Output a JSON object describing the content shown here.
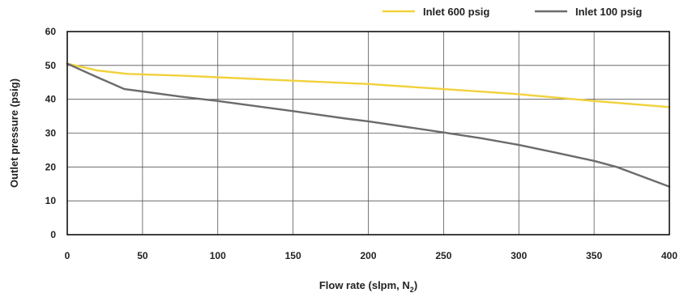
{
  "chart_data": {
    "type": "line",
    "title": "",
    "xlabel": "Flow rate (slpm, N",
    "xlabel_subscript": "2",
    "xlabel_suffix": ")",
    "ylabel": "Outlet pressure (psig)",
    "xlim": [
      0,
      400
    ],
    "ylim": [
      0,
      60
    ],
    "x_ticks": [
      "0",
      "50",
      "100",
      "150",
      "200",
      "250",
      "300",
      "350",
      "400"
    ],
    "y_ticks": [
      "0",
      "10",
      "20",
      "30",
      "40",
      "50",
      "60"
    ],
    "grid": true,
    "legend_position": "top-right",
    "series": [
      {
        "name": "Inlet 600 psig",
        "color": "#f2d13b",
        "x": [
          0,
          20,
          40,
          75,
          100,
          150,
          200,
          250,
          300,
          350,
          400
        ],
        "y": [
          50.5,
          48.5,
          47.5,
          47.0,
          46.5,
          45.5,
          44.5,
          43.0,
          41.5,
          39.5,
          37.7
        ]
      },
      {
        "name": "Inlet 100 psig",
        "color": "#6b6b6b",
        "x": [
          0,
          20,
          38,
          50,
          75,
          100,
          150,
          185,
          200,
          250,
          275,
          300,
          325,
          350,
          365,
          380,
          400
        ],
        "y": [
          50.5,
          46.5,
          43.0,
          42.3,
          40.8,
          39.5,
          36.5,
          34.3,
          33.5,
          30.2,
          28.5,
          26.5,
          24.2,
          21.8,
          20.0,
          17.5,
          14.2
        ]
      }
    ]
  }
}
